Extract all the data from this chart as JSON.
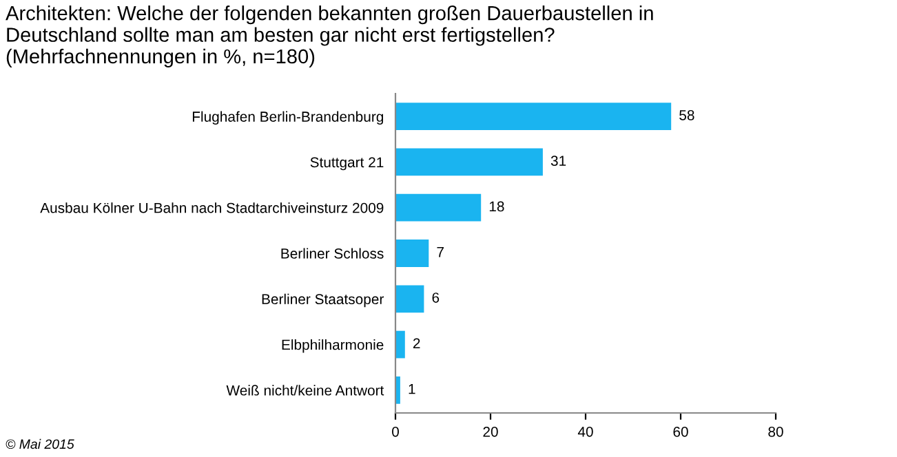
{
  "chart_data": {
    "type": "bar",
    "orientation": "horizontal",
    "title": "Architekten: Welche der folgenden bekannten großen Dauerbaustellen in\nDeutschland sollte man am besten gar nicht erst fertigstellen?\n(Mehrfachnennungen in %, n=180)",
    "categories": [
      "Flughafen Berlin-Brandenburg",
      "Stuttgart 21",
      "Ausbau Kölner U-Bahn nach Stadtarchiveinsturz 2009",
      "Berliner Schloss",
      "Berliner Staatsoper",
      "Elbphilharmonie",
      "Weiß nicht/keine Antwort"
    ],
    "values": [
      58,
      31,
      18,
      7,
      6,
      2,
      1
    ],
    "color": "#1ab4f0",
    "xlim": [
      0,
      80
    ],
    "xticks": [
      0,
      20,
      40,
      60,
      80
    ],
    "grid": false,
    "data_labels": true,
    "annotations": [
      "© Mai 2015"
    ]
  }
}
